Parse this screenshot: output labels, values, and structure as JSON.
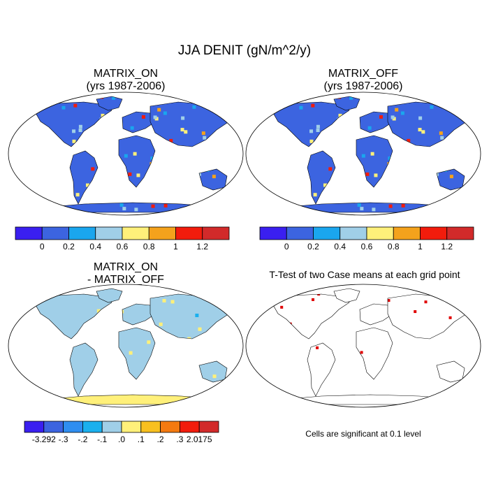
{
  "figure": {
    "title": "JJA DENIT (gN/m^2/y)"
  },
  "panels": [
    {
      "id": "matrix_on",
      "title_line1": "MATRIX_ON",
      "title_line2": "(yrs 1987-2006)"
    },
    {
      "id": "matrix_off",
      "title_line1": "MATRIX_OFF",
      "title_line2": "(yrs 1987-2006)"
    },
    {
      "id": "difference",
      "title_line1": "MATRIX_ON",
      "title_line2": "- MATRIX_OFF"
    },
    {
      "id": "ttest",
      "title_line1": "T-Test of two Case means at each grid point",
      "title_line2": ""
    }
  ],
  "colorbar_main": {
    "colors": [
      "#3a1ff0",
      "#3c64e0",
      "#1aa6ee",
      "#a0cfe8",
      "#fff07a",
      "#f4a21c",
      "#f21c0c",
      "#d22a2a"
    ],
    "labels": [
      "0",
      "0.2",
      "0.4",
      "0.6",
      "0.8",
      "1",
      "1.2"
    ]
  },
  "colorbar_diff": {
    "colors": [
      "#3a1ff0",
      "#3c64e0",
      "#2f8ef0",
      "#1ab0ee",
      "#a0cfe8",
      "#fff07a",
      "#f8c020",
      "#f47a10",
      "#f21c0c",
      "#d22a2a"
    ],
    "labels": [
      "-3.292",
      "-.3",
      "-.2",
      "-.1",
      ".0",
      ".1",
      ".2",
      ".3",
      "2.0175"
    ]
  },
  "note": "Cells are significant at 0.1 level",
  "colors": {
    "ocean_bg": "#ffffff",
    "land_base_main": "#3c64e0",
    "land_base_diff": "#a0cfe8",
    "significant": "#e00000"
  }
}
